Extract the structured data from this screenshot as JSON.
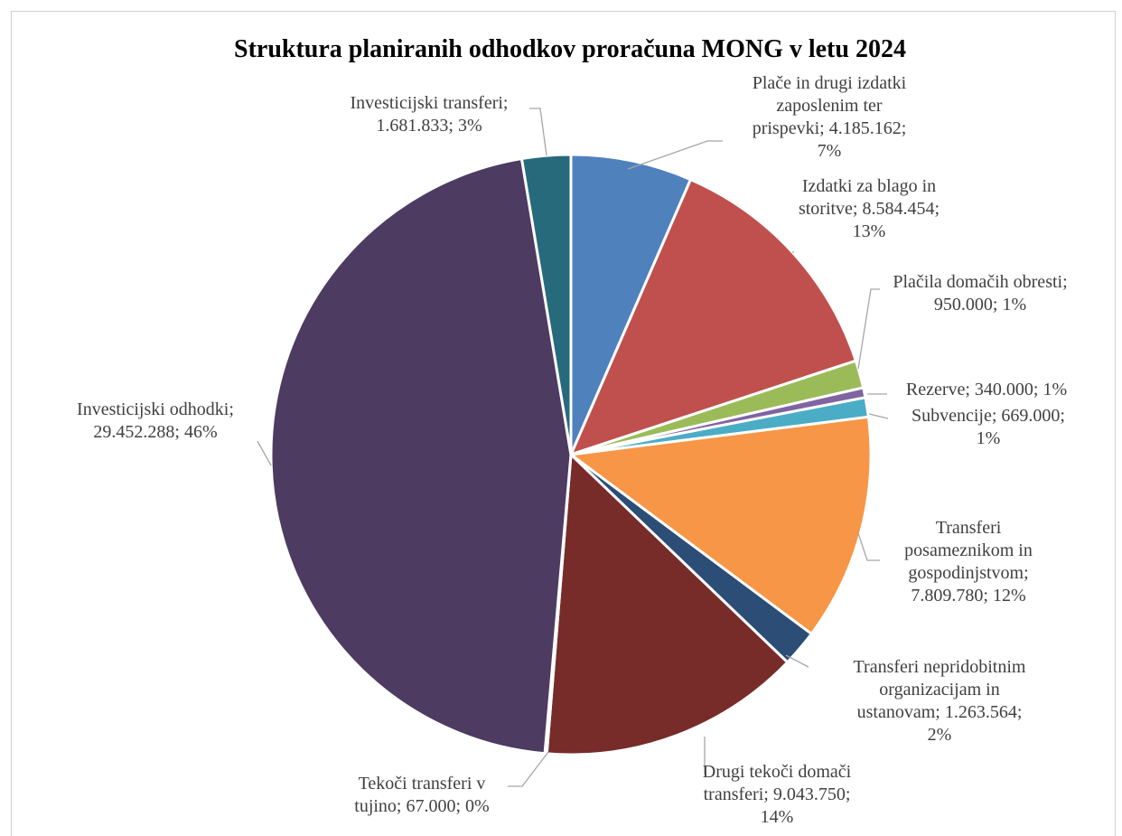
{
  "chart_data": {
    "type": "pie",
    "title": "Struktura planiranih odhodkov proračuna MONG v letu 2024",
    "slices": [
      {
        "name": "Plače in drugi izdatki zaposlenim ter prispevki",
        "value": 4185162,
        "percent": "7%",
        "color": "#4F81BD",
        "label_lines": [
          "Plače in drugi izdatki",
          "zaposlenim ter",
          "prispevki; 4.185.162;",
          "7%"
        ]
      },
      {
        "name": "Izdatki za blago in storitve",
        "value": 8584454,
        "percent": "13%",
        "color": "#C0504D",
        "label_lines": [
          "Izdatki za blago in",
          "storitve; 8.584.454;",
          "13%"
        ]
      },
      {
        "name": "Plačila domačih obresti",
        "value": 950000,
        "percent": "1%",
        "color": "#9BBB59",
        "label_lines": [
          "Plačila domačih obresti;",
          "950.000; 1%"
        ]
      },
      {
        "name": "Rezerve",
        "value": 340000,
        "percent": "1%",
        "color": "#8064A2",
        "label_lines": [
          "Rezerve; 340.000; 1%"
        ]
      },
      {
        "name": "Subvencije",
        "value": 669000,
        "percent": "1%",
        "color": "#4BACC6",
        "label_lines": [
          "Subvencije; 669.000;",
          "1%"
        ]
      },
      {
        "name": "Transferi posameznikom in gospodinjstvom",
        "value": 7809780,
        "percent": "12%",
        "color": "#F79646",
        "label_lines": [
          "Transferi",
          "posameznikom in",
          "gospodinjstvom;",
          "7.809.780; 12%"
        ]
      },
      {
        "name": "Transferi nepridobitnim organizacijam in ustanovam",
        "value": 1263564,
        "percent": "2%",
        "color": "#2C4D75",
        "label_lines": [
          "Transferi nepridobitnim",
          "organizacijam in",
          "ustanovam; 1.263.564;",
          "2%"
        ]
      },
      {
        "name": "Drugi tekoči domači transferi",
        "value": 9043750,
        "percent": "14%",
        "color": "#772C2A",
        "label_lines": [
          "Drugi tekoči domači",
          "transferi; 9.043.750;",
          "14%"
        ]
      },
      {
        "name": "Tekoči transferi v tujino",
        "value": 67000,
        "percent": "0%",
        "color": "#5F7530",
        "label_lines": [
          "Tekoči transferi v",
          "tujino; 67.000; 0%"
        ]
      },
      {
        "name": "Investicijski odhodki",
        "value": 29452288,
        "percent": "46%",
        "color": "#4D3B62",
        "label_lines": [
          "Investicijski odhodki;",
          "29.452.288; 46%"
        ]
      },
      {
        "name": "Investicijski transferi",
        "value": 1681833,
        "percent": "3%",
        "color": "#276A7C",
        "label_lines": [
          "Investicijski transferi;",
          "1.681.833; 3%"
        ]
      }
    ]
  }
}
